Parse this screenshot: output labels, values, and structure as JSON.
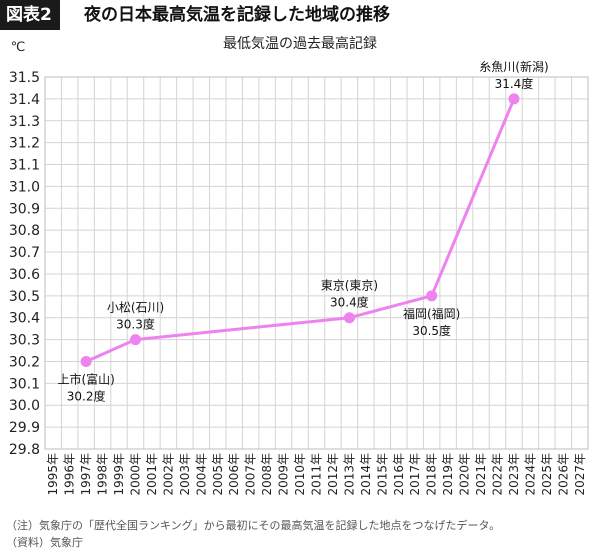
{
  "figure": {
    "label": "図表2",
    "title": "夜の日本最高気温を記録した地域の推移"
  },
  "footer": {
    "note": "（注）気象庁の「歴代全国ランキング」から最初にその最高気温を記録した地点をつなげたデータ。",
    "source": "（資料）気象庁"
  },
  "chart_data": {
    "type": "line",
    "title": "最低気温の過去最高記録",
    "ylabel": "℃",
    "xlabel": "",
    "ylim": [
      29.8,
      31.5
    ],
    "ytick_step": 0.1,
    "grid": true,
    "x_categories": [
      "1995年",
      "1996年",
      "1997年",
      "1998年",
      "1999年",
      "2000年",
      "2001年",
      "2002年",
      "2003年",
      "2004年",
      "2005年",
      "2006年",
      "2007年",
      "2008年",
      "2009年",
      "2010年",
      "2011年",
      "2012年",
      "2013年",
      "2014年",
      "2015年",
      "2016年",
      "2017年",
      "2018年",
      "2019年",
      "2020年",
      "2021年",
      "2022年",
      "2023年",
      "2024年",
      "2025年",
      "2026年",
      "2027年"
    ],
    "series": [
      {
        "color": "#ee82ee",
        "points": [
          {
            "x": "1997年",
            "y": 30.2,
            "place": "上市(富山)",
            "value_label": "30.2度",
            "label_pos": "below"
          },
          {
            "x": "2000年",
            "y": 30.3,
            "place": "小松(石川)",
            "value_label": "30.3度",
            "label_pos": "above"
          },
          {
            "x": "2013年",
            "y": 30.4,
            "place": "東京(東京)",
            "value_label": "30.4度",
            "label_pos": "above"
          },
          {
            "x": "2018年",
            "y": 30.5,
            "place": "福岡(福岡)",
            "value_label": "30.5度",
            "label_pos": "below"
          },
          {
            "x": "2023年",
            "y": 31.4,
            "place": "糸魚川(新潟)",
            "value_label": "31.4度",
            "label_pos": "above"
          }
        ]
      }
    ]
  }
}
